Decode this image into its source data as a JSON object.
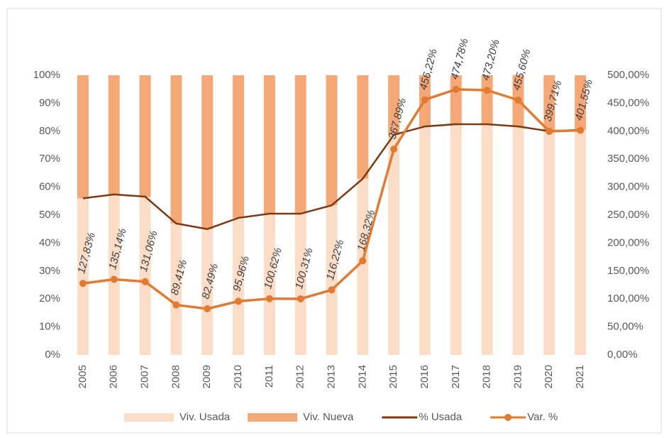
{
  "chart_data": {
    "type": "bar_line_combo",
    "categories": [
      "2005",
      "2006",
      "2007",
      "2008",
      "2009",
      "2010",
      "2011",
      "2012",
      "2013",
      "2014",
      "2015",
      "2016",
      "2017",
      "2018",
      "2019",
      "2020",
      "2021"
    ],
    "series": [
      {
        "name": "Viv. Usada",
        "type": "bar",
        "color": "#fbdcc6",
        "axis": "y",
        "values": [
          56,
          57.4,
          56.6,
          47,
          45,
          49,
          50.5,
          50.5,
          53.5,
          63,
          78.7,
          81.7,
          82.5,
          82.5,
          81.7,
          80,
          80.5
        ]
      },
      {
        "name": "Viv. Nueva",
        "type": "bar",
        "color": "#f4a878",
        "axis": "y",
        "values": [
          44,
          42.6,
          43.4,
          53,
          55,
          51,
          49.5,
          49.5,
          46.5,
          37,
          21.3,
          18.3,
          17.5,
          17.5,
          18.3,
          20,
          19.5
        ]
      },
      {
        "name": "% Usada",
        "type": "line",
        "color": "#7b3a12",
        "axis": "y",
        "values": [
          56,
          57.4,
          56.6,
          47,
          45,
          49,
          50.5,
          50.5,
          53.5,
          63,
          78.7,
          81.7,
          82.5,
          82.5,
          81.7,
          80,
          80.5
        ]
      },
      {
        "name": "Var. %",
        "type": "line",
        "color": "#e07b34",
        "axis": "y2",
        "marker": true,
        "values": [
          127.83,
          135.14,
          131.06,
          89.41,
          82.49,
          95.96,
          100.62,
          100.31,
          116.22,
          168.32,
          367.89,
          456.22,
          474.78,
          473.2,
          455.6,
          399.71,
          401.55
        ],
        "value_labels": [
          "127,83%",
          "135,14%",
          "131,06%",
          "89,41%",
          "82,49%",
          "95,96%",
          "100,62%",
          "100,31%",
          "116,22%",
          "168,32%",
          "367,89%",
          "456,22%",
          "474,78%",
          "473,20%",
          "455,60%",
          "399,71%",
          "401,55%"
        ]
      }
    ],
    "stacked": true,
    "ylim": [
      0,
      100
    ],
    "yticks": [
      {
        "value": 0,
        "label": "0%"
      },
      {
        "value": 10,
        "label": "10%"
      },
      {
        "value": 20,
        "label": "20%"
      },
      {
        "value": 30,
        "label": "30%"
      },
      {
        "value": 40,
        "label": "40%"
      },
      {
        "value": 50,
        "label": "50%"
      },
      {
        "value": 60,
        "label": "60%"
      },
      {
        "value": 70,
        "label": "70%"
      },
      {
        "value": 80,
        "label": "80%"
      },
      {
        "value": 90,
        "label": "90%"
      },
      {
        "value": 100,
        "label": "100%"
      }
    ],
    "y2lim": [
      0,
      500
    ],
    "y2ticks": [
      {
        "value": 0,
        "label": "0,00%"
      },
      {
        "value": 50,
        "label": "50,00%"
      },
      {
        "value": 100,
        "label": "100,00%"
      },
      {
        "value": 150,
        "label": "150,00%"
      },
      {
        "value": 200,
        "label": "200,00%"
      },
      {
        "value": 250,
        "label": "250,00%"
      },
      {
        "value": 300,
        "label": "300,00%"
      },
      {
        "value": 350,
        "label": "350,00%"
      },
      {
        "value": 400,
        "label": "400,00%"
      },
      {
        "value": 450,
        "label": "450,00%"
      },
      {
        "value": 500,
        "label": "500,00%"
      }
    ],
    "legend": "bottom"
  }
}
